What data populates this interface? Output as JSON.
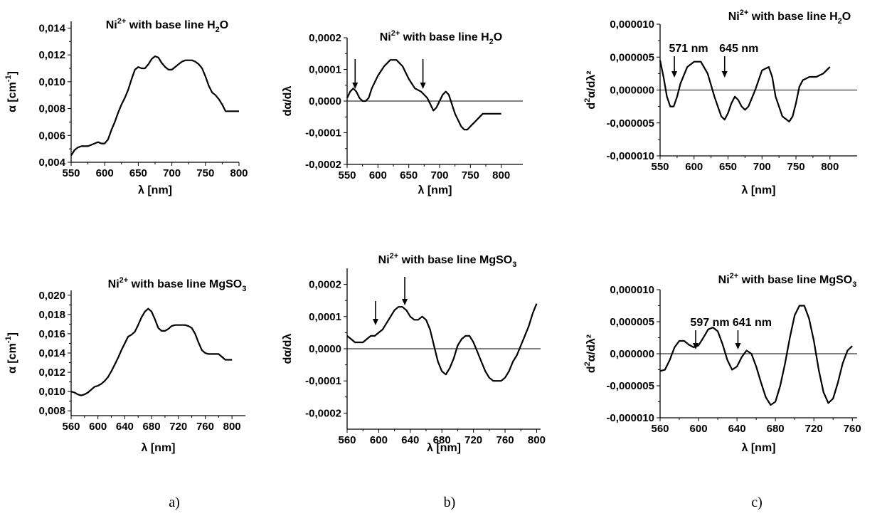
{
  "chart_data": [
    {
      "id": "a-top",
      "type": "line",
      "title": {
        "main": "Ni",
        "sup": "2+",
        "mid": " with base line H",
        "sub": "2",
        "tail": "O"
      },
      "xlabel": "λ [nm]",
      "ylabel": {
        "main": "α [cm",
        "sup": "-1",
        "tail": "]"
      },
      "xlim": [
        550,
        800
      ],
      "ylim": [
        0.004,
        0.0145
      ],
      "xticks": [
        "550",
        "600",
        "650",
        "700",
        "750",
        "800"
      ],
      "yticks": [
        "0,004",
        "0,006",
        "0,008",
        "0,010",
        "0,012",
        "0,014"
      ],
      "zero_line": false,
      "series": [
        {
          "x": [
            550,
            555,
            560,
            565,
            570,
            575,
            580,
            585,
            590,
            595,
            600,
            605,
            610,
            615,
            620,
            625,
            630,
            635,
            640,
            645,
            650,
            655,
            660,
            665,
            670,
            675,
            680,
            685,
            690,
            695,
            700,
            705,
            710,
            715,
            720,
            725,
            730,
            735,
            740,
            745,
            750,
            755,
            760,
            765,
            770,
            775,
            780,
            785,
            790,
            795,
            800
          ],
          "y": [
            0.0045,
            0.0049,
            0.0051,
            0.0052,
            0.0052,
            0.0052,
            0.0053,
            0.0054,
            0.0055,
            0.0054,
            0.0054,
            0.0057,
            0.0064,
            0.007,
            0.0077,
            0.0083,
            0.0088,
            0.0094,
            0.0102,
            0.0109,
            0.0111,
            0.011,
            0.011,
            0.0113,
            0.0117,
            0.0119,
            0.0118,
            0.0114,
            0.0111,
            0.0109,
            0.0109,
            0.0111,
            0.0113,
            0.0115,
            0.0116,
            0.0116,
            0.0116,
            0.0115,
            0.0113,
            0.011,
            0.0104,
            0.0097,
            0.0092,
            0.009,
            0.0087,
            0.0083,
            0.0078,
            0.0078,
            0.0078,
            0.0078,
            0.0078
          ]
        }
      ],
      "annotations": []
    },
    {
      "id": "b-top",
      "type": "line",
      "title": {
        "main": "Ni",
        "sup": "2+",
        "mid": " with base line H",
        "sub": "2",
        "tail": "O"
      },
      "xlabel": "λ [nm]",
      "ylabel": {
        "main": "dα/dλ",
        "sup": "",
        "tail": ""
      },
      "xlim": [
        550,
        835
      ],
      "ylim": [
        -0.0002,
        0.0002
      ],
      "xticks": [
        "550",
        "600",
        "650",
        "700",
        "750",
        "800"
      ],
      "yticks": [
        "-0,0002",
        "-0,0001",
        "0,0000",
        "0,0001",
        "0,0002"
      ],
      "zero_line": true,
      "series": [
        {
          "x": [
            550,
            555,
            560,
            565,
            570,
            575,
            580,
            585,
            590,
            600,
            610,
            620,
            630,
            640,
            650,
            660,
            670,
            675,
            680,
            685,
            690,
            695,
            700,
            705,
            710,
            715,
            720,
            725,
            730,
            735,
            740,
            745,
            750,
            755,
            760,
            765,
            770,
            775,
            780,
            790,
            800
          ],
          "y": [
            1e-05,
            3e-05,
            4e-05,
            3e-05,
            1e-05,
            0.0,
            -0.0,
            1e-05,
            4e-05,
            8e-05,
            0.00011,
            0.00013,
            0.00013,
            0.00011,
            7e-05,
            4e-05,
            3e-05,
            2e-05,
            1e-05,
            -1e-05,
            -3e-05,
            -2e-05,
            0.0,
            2e-05,
            3e-05,
            2e-05,
            -1e-05,
            -4e-05,
            -6e-05,
            -8e-05,
            -9e-05,
            -9e-05,
            -8e-05,
            -7e-05,
            -6e-05,
            -5e-05,
            -4e-05,
            -4e-05,
            -4e-05,
            -4e-05,
            -4e-05
          ]
        }
      ],
      "annotations": [
        {
          "x": 563,
          "text": ""
        },
        {
          "x": 673,
          "text": ""
        }
      ]
    },
    {
      "id": "c-top",
      "type": "line",
      "title": {
        "main": "Ni",
        "sup": "2+",
        "mid": " with base line H",
        "sub": "2",
        "tail": "O"
      },
      "xlabel": "λ [nm]",
      "ylabel": {
        "main": "d",
        "sup": "2",
        "tail": "α/dλ²"
      },
      "xlim": [
        550,
        840
      ],
      "ylim": [
        -1e-05,
        1e-05
      ],
      "xticks": [
        "550",
        "600",
        "650",
        "700",
        "750",
        "800"
      ],
      "yticks": [
        "-0,000010",
        "-0,000005",
        "0,000000",
        "0,000005",
        "0,000010"
      ],
      "zero_line": true,
      "series": [
        {
          "x": [
            550,
            555,
            560,
            565,
            570,
            575,
            580,
            590,
            600,
            610,
            620,
            630,
            640,
            645,
            650,
            655,
            660,
            665,
            670,
            675,
            680,
            690,
            700,
            710,
            715,
            720,
            730,
            740,
            745,
            750,
            755,
            760,
            770,
            780,
            790,
            800
          ],
          "y": [
            4.5e-06,
            2e-06,
            -1e-06,
            -2.5e-06,
            -2.5e-06,
            -1e-06,
            1e-06,
            3.5e-06,
            4.3e-06,
            4.3e-06,
            2.5e-06,
            -1e-06,
            -4e-06,
            -4.5e-06,
            -3.5e-06,
            -2e-06,
            -1e-06,
            -1.5e-06,
            -2.5e-06,
            -3e-06,
            -2.5e-06,
            0.0,
            3e-06,
            3.5e-06,
            2e-06,
            -1e-06,
            -4e-06,
            -4.8e-06,
            -4e-06,
            -2e-06,
            5e-07,
            1.5e-06,
            2e-06,
            2e-06,
            2.5e-06,
            3.5e-06
          ]
        }
      ],
      "annotations": [
        {
          "x": 571,
          "text": "571 nm"
        },
        {
          "x": 645,
          "text": "645 nm"
        }
      ]
    },
    {
      "id": "a-bottom",
      "type": "line",
      "title": {
        "main": "Ni",
        "sup": "2+",
        "mid": " with base line MgSO",
        "sub": "3",
        "tail": ""
      },
      "xlabel": "λ [nm]",
      "ylabel": {
        "main": "α [cm",
        "sup": "-1",
        "tail": "]"
      },
      "xlim": [
        560,
        820
      ],
      "ylim": [
        0.0075,
        0.0205
      ],
      "xticks": [
        "560",
        "600",
        "640",
        "680",
        "720",
        "760",
        "800"
      ],
      "yticks": [
        "0,008",
        "0,010",
        "0,012",
        "0,014",
        "0,016",
        "0,018",
        "0,020"
      ],
      "zero_line": false,
      "series": [
        {
          "x": [
            560,
            565,
            570,
            575,
            580,
            585,
            590,
            595,
            600,
            605,
            610,
            615,
            620,
            625,
            630,
            635,
            640,
            645,
            650,
            655,
            660,
            665,
            670,
            675,
            680,
            685,
            690,
            695,
            700,
            705,
            710,
            715,
            720,
            725,
            730,
            735,
            740,
            745,
            750,
            755,
            760,
            765,
            770,
            775,
            780,
            785,
            790,
            795,
            800
          ],
          "y": [
            0.01,
            0.0099,
            0.0097,
            0.0096,
            0.0097,
            0.0099,
            0.0102,
            0.0105,
            0.0106,
            0.0108,
            0.0111,
            0.0115,
            0.0121,
            0.0128,
            0.0135,
            0.0143,
            0.015,
            0.0157,
            0.0159,
            0.0162,
            0.0169,
            0.0177,
            0.0183,
            0.0186,
            0.0183,
            0.0175,
            0.0166,
            0.0163,
            0.0163,
            0.0165,
            0.0168,
            0.0169,
            0.0169,
            0.0169,
            0.0169,
            0.0168,
            0.0166,
            0.016,
            0.0151,
            0.0143,
            0.014,
            0.0139,
            0.0139,
            0.0139,
            0.0139,
            0.0136,
            0.0133,
            0.0133,
            0.0133
          ]
        }
      ],
      "annotations": []
    },
    {
      "id": "b-bottom",
      "type": "line",
      "title": {
        "main": "Ni",
        "sup": "2+",
        "mid": " with base line MgSO",
        "sub": "3",
        "tail": ""
      },
      "xlabel": "λ [nm]",
      "ylabel": {
        "main": "dα/dλ",
        "sup": "",
        "tail": ""
      },
      "xlim": [
        560,
        805
      ],
      "ylim": [
        -0.00025,
        0.00025
      ],
      "xticks": [
        "560",
        "600",
        "640",
        "680",
        "720",
        "760",
        "800"
      ],
      "yticks": [
        "-0,0002",
        "-0,0001",
        "0,0000",
        "0,0001",
        "0,0002"
      ],
      "zero_line": true,
      "series": [
        {
          "x": [
            560,
            565,
            570,
            575,
            580,
            585,
            590,
            595,
            600,
            605,
            610,
            615,
            620,
            625,
            630,
            635,
            640,
            645,
            650,
            655,
            660,
            665,
            670,
            675,
            680,
            685,
            690,
            695,
            700,
            705,
            710,
            715,
            720,
            725,
            730,
            735,
            740,
            745,
            750,
            755,
            760,
            765,
            770,
            775,
            780,
            785,
            790,
            795,
            800
          ],
          "y": [
            4e-05,
            3e-05,
            2e-05,
            2e-05,
            2e-05,
            3e-05,
            4e-05,
            4e-05,
            5e-05,
            6e-05,
            8e-05,
            0.0001,
            0.00012,
            0.00013,
            0.00013,
            0.00012,
            0.0001,
            9e-05,
            9e-05,
            0.0001,
            9e-05,
            6e-05,
            1e-05,
            -4e-05,
            -7e-05,
            -8e-05,
            -6e-05,
            -3e-05,
            1e-05,
            3e-05,
            4e-05,
            4e-05,
            2e-05,
            -1e-05,
            -4e-05,
            -7e-05,
            -9e-05,
            -0.0001,
            -0.0001,
            -0.0001,
            -9e-05,
            -7e-05,
            -4e-05,
            -2e-05,
            1e-05,
            4e-05,
            7e-05,
            0.00011,
            0.00014
          ]
        }
      ],
      "annotations": [
        {
          "x": 596,
          "text": ""
        },
        {
          "x": 633,
          "text": ""
        }
      ]
    },
    {
      "id": "c-bottom",
      "type": "line",
      "title": {
        "main": "Ni",
        "sup": "2+",
        "mid": " with base line MgSO",
        "sub": "3",
        "tail": ""
      },
      "xlabel": "λ [nm]",
      "ylabel": {
        "main": "d",
        "sup": "2",
        "tail": "α/dλ²"
      },
      "xlim": [
        560,
        765
      ],
      "ylim": [
        -1e-05,
        1e-05
      ],
      "xticks": [
        "560",
        "600",
        "640",
        "680",
        "720",
        "760"
      ],
      "yticks": [
        "-0,000010",
        "-0,000005",
        "0,000000",
        "0,000005",
        "0,000010"
      ],
      "zero_line": true,
      "series": [
        {
          "x": [
            560,
            565,
            570,
            575,
            580,
            585,
            590,
            595,
            600,
            605,
            610,
            615,
            620,
            625,
            630,
            635,
            640,
            645,
            650,
            655,
            660,
            665,
            670,
            675,
            680,
            685,
            690,
            695,
            700,
            705,
            710,
            715,
            720,
            725,
            730,
            735,
            740,
            745,
            750,
            755,
            760
          ],
          "y": [
            -2.7e-06,
            -2.5e-06,
            -1e-06,
            1e-06,
            2e-06,
            2e-06,
            1.4e-06,
            1e-06,
            1.3e-06,
            2.5e-06,
            3.8e-06,
            4.1e-06,
            3.5e-06,
            1.5e-06,
            -1e-06,
            -2.5e-06,
            -2e-06,
            -5e-07,
            5e-07,
            0.0,
            -2e-06,
            -4.5e-06,
            -6.8e-06,
            -8e-06,
            -7.5e-06,
            -5e-06,
            -1.5e-06,
            2.5e-06,
            6e-06,
            7.5e-06,
            7.5e-06,
            5.5e-06,
            2e-06,
            -2.5e-06,
            -6e-06,
            -7.7e-06,
            -7e-06,
            -4.5e-06,
            -1.5e-06,
            5e-07,
            1.2e-06
          ]
        }
      ],
      "annotations": [
        {
          "x": 597,
          "text": "597 nm"
        },
        {
          "x": 641,
          "text": "641 nm"
        }
      ]
    }
  ],
  "captions": [
    "a)",
    "b)",
    "c)"
  ]
}
